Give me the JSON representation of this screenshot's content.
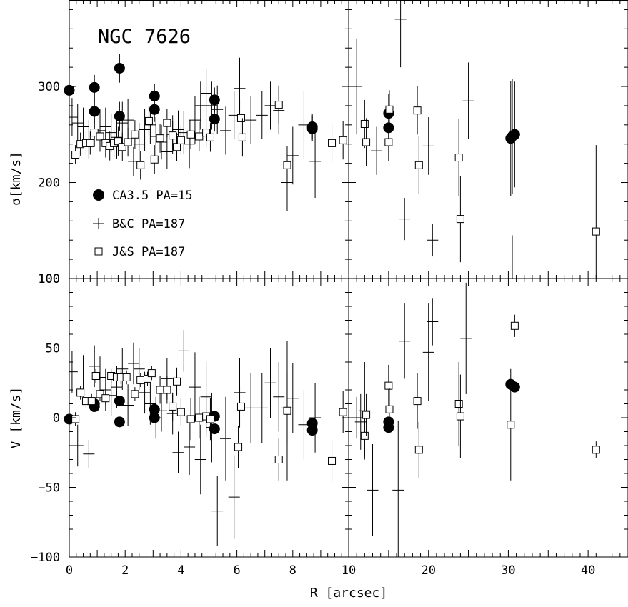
{
  "chart_data": {
    "type": "scatter",
    "annotation": "NGC 7626",
    "xlabel": "R [arcsec]",
    "legend": {
      "placement": "left",
      "entries": [
        {
          "label": "CA3.5 PA=15",
          "marker": "filled-circle"
        },
        {
          "label": "B&C PA=187",
          "marker": "plus"
        },
        {
          "label": "J&S PA=187",
          "marker": "open-square"
        }
      ]
    },
    "panels": [
      {
        "id": "sigma-inner",
        "ylabel": "σ[km/s]",
        "xlim": [
          0,
          10
        ],
        "ylim": [
          100,
          390
        ],
        "xticklabels": [
          "0",
          "2",
          "4",
          "6",
          "8"
        ],
        "yticklabels": [
          "100",
          "200",
          "300"
        ],
        "series": [
          {
            "name": "CA3.5 PA=15",
            "marker": "filled-circle",
            "x": [
              0.0,
              0.9,
              0.9,
              1.8,
              1.8,
              3.05,
              3.05,
              5.2,
              5.2,
              8.7,
              8.7
            ],
            "y": [
              296,
              299,
              274,
              319,
              269,
              290,
              276,
              286,
              266,
              258,
              256
            ],
            "yerr": [
              0,
              13,
              13,
              15,
              15,
              13,
              13,
              13,
              13,
              13,
              13
            ]
          },
          {
            "name": "B&C PA=187",
            "marker": "plus",
            "x": [
              0.1,
              0.3,
              0.5,
              0.7,
              0.9,
              1.1,
              1.3,
              1.5,
              1.7,
              1.9,
              2.1,
              2.3,
              2.5,
              2.7,
              2.9,
              3.1,
              3.3,
              3.5,
              3.7,
              3.9,
              4.1,
              4.3,
              4.5,
              4.7,
              4.9,
              5.1,
              5.3,
              5.6,
              5.9,
              6.1,
              6.5,
              6.9,
              7.2,
              7.5,
              7.8,
              8.0,
              8.4,
              8.8
            ],
            "y": [
              268,
              262,
              258,
              245,
              276,
              254,
              258,
              252,
              247,
              262,
              265,
              222,
              240,
              255,
              260,
              248,
              242,
              232,
              250,
              255,
              252,
              240,
              265,
              280,
              293,
              280,
              276,
              254,
              270,
              298,
              265,
              270,
              280,
              275,
              200,
              228,
              260,
              222
            ],
            "yerr": [
              20,
              20,
              20,
              20,
              22,
              22,
              20,
              20,
              22,
              22,
              22,
              15,
              22,
              22,
              20,
              20,
              18,
              18,
              20,
              20,
              22,
              25,
              25,
              25,
              25,
              25,
              25,
              25,
              25,
              32,
              25,
              25,
              25,
              25,
              30,
              30,
              35,
              38
            ]
          },
          {
            "name": "J&S PA=187",
            "marker": "open-square",
            "x": [
              0.22,
              0.4,
              0.6,
              0.75,
              0.9,
              1.1,
              1.3,
              1.45,
              1.6,
              1.75,
              1.9,
              2.1,
              2.35,
              2.55,
              2.85,
              3.05,
              3.25,
              3.5,
              3.7,
              3.85,
              4.0,
              4.35,
              4.65,
              4.9,
              5.05,
              6.15,
              6.2,
              7.5,
              7.8,
              9.4,
              9.8
            ],
            "y": [
              229,
              240,
              241,
              241,
              252,
              248,
              241,
              238,
              241,
              243,
              237,
              242,
              250,
              218,
              264,
              224,
              246,
              262,
              249,
              237,
              244,
              250,
              248,
              252,
              247,
              267,
              247,
              281,
              218,
              241,
              244
            ],
            "yerr": [
              10,
              12,
              12,
              12,
              15,
              15,
              15,
              15,
              15,
              15,
              15,
              15,
              15,
              15,
              15,
              15,
              15,
              15,
              15,
              15,
              15,
              15,
              15,
              15,
              15,
              20,
              20,
              20,
              20,
              20,
              20
            ]
          }
        ]
      },
      {
        "id": "sigma-outer",
        "xlim": [
          10,
          45
        ],
        "ylim": [
          100,
          390
        ],
        "xticklabels": [
          "10",
          "20",
          "30",
          "40"
        ],
        "series": [
          {
            "name": "CA3.5 PA=15",
            "marker": "filled-circle",
            "x": [
              15.0,
              15.0,
              30.3,
              30.5,
              30.8
            ],
            "y": [
              272,
              257,
              246,
              248,
              250
            ],
            "yerr": [
              20,
              20,
              60,
              60,
              55
            ]
          },
          {
            "name": "B&C PA=187",
            "marker": "plus",
            "x": [
              11.0,
              13.5,
              16.5,
              17.0,
              20.0,
              20.5,
              25.0,
              30.5
            ],
            "y": [
              300,
              233,
              370,
              162,
              238,
              140,
              285,
              100
            ],
            "yerr": [
              50,
              25,
              50,
              22,
              30,
              17,
              40,
              45
            ]
          },
          {
            "name": "J&S PA=187",
            "marker": "open-square",
            "x": [
              12.0,
              12.2,
              15.0,
              15.1,
              18.6,
              18.8,
              23.8,
              24.0,
              41.0
            ],
            "y": [
              261,
              242,
              242,
              276,
              275,
              218,
              226,
              162,
              149
            ],
            "yerr": [
              25,
              25,
              20,
              20,
              25,
              30,
              40,
              45,
              90
            ]
          }
        ]
      },
      {
        "id": "v-inner",
        "ylabel": "V [km/s]",
        "xlim": [
          0,
          10
        ],
        "ylim": [
          -100,
          100
        ],
        "xticklabels": [
          "0",
          "2",
          "4",
          "6",
          "8"
        ],
        "yticklabels": [
          "−100",
          "−50",
          "0",
          "50",
          "100"
        ],
        "series": [
          {
            "name": "CA3.5 PA=15",
            "marker": "filled-circle",
            "x": [
              0.0,
              0.9,
              0.9,
              1.8,
              1.8,
              3.05,
              3.05,
              5.2,
              5.2,
              8.7,
              8.7
            ],
            "y": [
              -1,
              8,
              10,
              12,
              -3,
              6,
              0,
              1,
              -8,
              -4,
              -9
            ],
            "yerr": [
              0,
              0,
              0,
              0,
              0,
              0,
              0,
              0,
              0,
              0,
              0
            ]
          },
          {
            "name": "B&C PA=187",
            "marker": "plus",
            "x": [
              0.1,
              0.3,
              0.5,
              0.7,
              0.9,
              1.1,
              1.3,
              1.5,
              1.7,
              1.9,
              2.1,
              2.3,
              2.5,
              2.7,
              2.9,
              3.1,
              3.3,
              3.5,
              3.7,
              3.9,
              4.1,
              4.3,
              4.5,
              4.7,
              4.9,
              5.1,
              5.3,
              5.6,
              5.9,
              6.1,
              6.5,
              6.9,
              7.2,
              7.5,
              7.8,
              8.0,
              8.4,
              8.8
            ],
            "y": [
              33,
              -20,
              30,
              -26,
              37,
              29,
              20,
              16,
              22,
              35,
              9,
              39,
              35,
              18,
              10,
              0,
              5,
              28,
              3,
              -25,
              48,
              -21,
              22,
              -30,
              15,
              -7,
              -67,
              -15,
              -57,
              18,
              7,
              7,
              25,
              15,
              7,
              14,
              -5,
              0
            ],
            "yerr": [
              15,
              15,
              15,
              10,
              15,
              15,
              15,
              15,
              15,
              15,
              15,
              15,
              15,
              15,
              15,
              15,
              15,
              15,
              15,
              15,
              15,
              20,
              25,
              25,
              25,
              25,
              25,
              30,
              30,
              25,
              25,
              25,
              25,
              25,
              25,
              25,
              25,
              25
            ]
          },
          {
            "name": "J&S PA=187",
            "marker": "open-square",
            "x": [
              0.22,
              0.4,
              0.6,
              0.8,
              0.95,
              1.1,
              1.3,
              1.5,
              1.7,
              1.85,
              2.05,
              2.35,
              2.55,
              2.8,
              2.95,
              3.25,
              3.5,
              3.7,
              3.85,
              4.0,
              4.35,
              4.65,
              4.9,
              5.05,
              6.05,
              6.15,
              7.5,
              7.8,
              9.4,
              9.8
            ],
            "y": [
              -1,
              18,
              12,
              12,
              30,
              17,
              14,
              30,
              29,
              29,
              29,
              17,
              27,
              28,
              32,
              20,
              20,
              8,
              26,
              4,
              -1,
              0,
              1,
              -1,
              -21,
              8,
              -30,
              5,
              -31,
              4
            ],
            "yerr": [
              5,
              5,
              5,
              5,
              5,
              5,
              5,
              5,
              5,
              5,
              5,
              5,
              5,
              5,
              5,
              10,
              10,
              10,
              10,
              10,
              15,
              15,
              15,
              15,
              15,
              15,
              15,
              50,
              15,
              15
            ]
          }
        ]
      },
      {
        "id": "v-outer",
        "xlim": [
          10,
          45
        ],
        "ylim": [
          -100,
          100
        ],
        "xticklabels": [
          "10",
          "20",
          "30",
          "40"
        ],
        "series": [
          {
            "name": "CA3.5 PA=15",
            "marker": "filled-circle",
            "x": [
              15.0,
              15.0,
              30.3,
              30.8
            ],
            "y": [
              -3,
              -7,
              24,
              22
            ],
            "yerr": [
              0,
              0,
              0,
              0
            ]
          },
          {
            "name": "B&C PA=187",
            "marker": "plus",
            "x": [
              11.0,
              11.5,
              12.0,
              13.0,
              16.2,
              17.0,
              20.0,
              20.5,
              24.7
            ],
            "y": [
              0,
              -3,
              5,
              -52,
              -52,
              55,
              47,
              69,
              57
            ],
            "yerr": [
              15,
              20,
              35,
              33,
              50,
              27,
              35,
              17,
              40
            ]
          },
          {
            "name": "J&S PA=187",
            "marker": "open-square",
            "x": [
              12.0,
              12.2,
              15.0,
              15.1,
              18.6,
              18.8,
              23.8,
              24.0,
              30.3,
              30.8,
              41.0
            ],
            "y": [
              -13,
              2,
              23,
              6,
              12,
              -23,
              10,
              1,
              -5,
              66,
              -23
            ],
            "yerr": [
              15,
              15,
              15,
              15,
              20,
              20,
              30,
              30,
              40,
              8,
              6
            ]
          }
        ]
      }
    ]
  }
}
